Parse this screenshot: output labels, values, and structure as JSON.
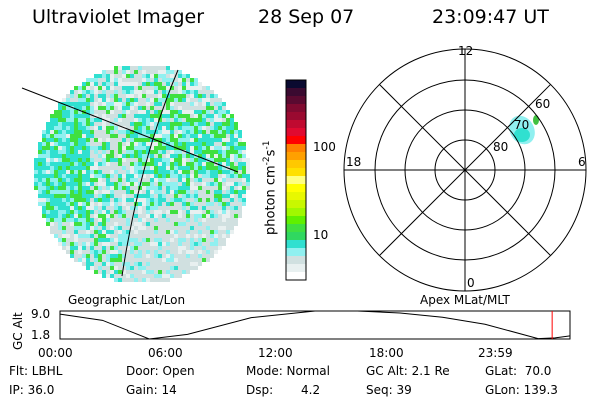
{
  "header": {
    "instrument": "Ultraviolet Imager",
    "date": "28 Sep 07",
    "time": "23:09:47 UT"
  },
  "colorbar": {
    "label": "photon cm",
    "exp1": "-2",
    "unit2": "s",
    "exp2": "-1",
    "ticks": [
      {
        "label": "100",
        "value": 100
      },
      {
        "label": "10",
        "value": 10
      }
    ],
    "colors": [
      "#0a0a30",
      "#3a0a30",
      "#5a0a30",
      "#800a30",
      "#9a0a30",
      "#c00a30",
      "#e00a30",
      "#ff0000",
      "#ff8000",
      "#ffa000",
      "#ffc800",
      "#ffe000",
      "#ffff80",
      "#ffff00",
      "#e8f800",
      "#c8f800",
      "#a0f800",
      "#60f000",
      "#40e040",
      "#30d860",
      "#30e0d0",
      "#90f0f0",
      "#d0e0e0",
      "#e8f0f0",
      "#ffffff"
    ]
  },
  "left_panel": {
    "label": "Geographic Lat/Lon"
  },
  "right_panel": {
    "label": "Apex MLat/MLT",
    "mlt_labels": [
      "12",
      "18",
      "6",
      "0"
    ],
    "lat_labels": [
      "80",
      "70",
      "60"
    ]
  },
  "chart_data": {
    "type": "line",
    "title": "",
    "ylabel": "GC Alt",
    "yticks": [
      "9.0",
      "1.8"
    ],
    "ylim": [
      1.8,
      9.0
    ],
    "xticks": [
      "00:00",
      "06:00",
      "12:00",
      "18:00",
      "23:59"
    ],
    "x_hours": [
      0,
      2,
      4.2,
      6,
      9,
      12,
      14,
      16,
      18,
      20,
      22.5,
      23.3,
      24
    ],
    "y_alt": [
      8.2,
      6.6,
      1.8,
      3.0,
      7.3,
      9.0,
      9.0,
      8.5,
      7.4,
      5.6,
      1.9,
      2.1,
      2.6
    ],
    "current_time_hours": 23.16
  },
  "info": {
    "flt": "Flt: LBHL",
    "ip": "IP: 36.0",
    "door": "Door: Open",
    "gain": "Gain: 14",
    "mode": "Mode: Normal",
    "dsp_label": "Dsp:",
    "dsp_value": "4.2",
    "gcalt": "GC Alt: 2.1 Re",
    "seq": "Seq: 39",
    "glat": "GLat:  70.0",
    "glon": "GLon: 139.3"
  }
}
